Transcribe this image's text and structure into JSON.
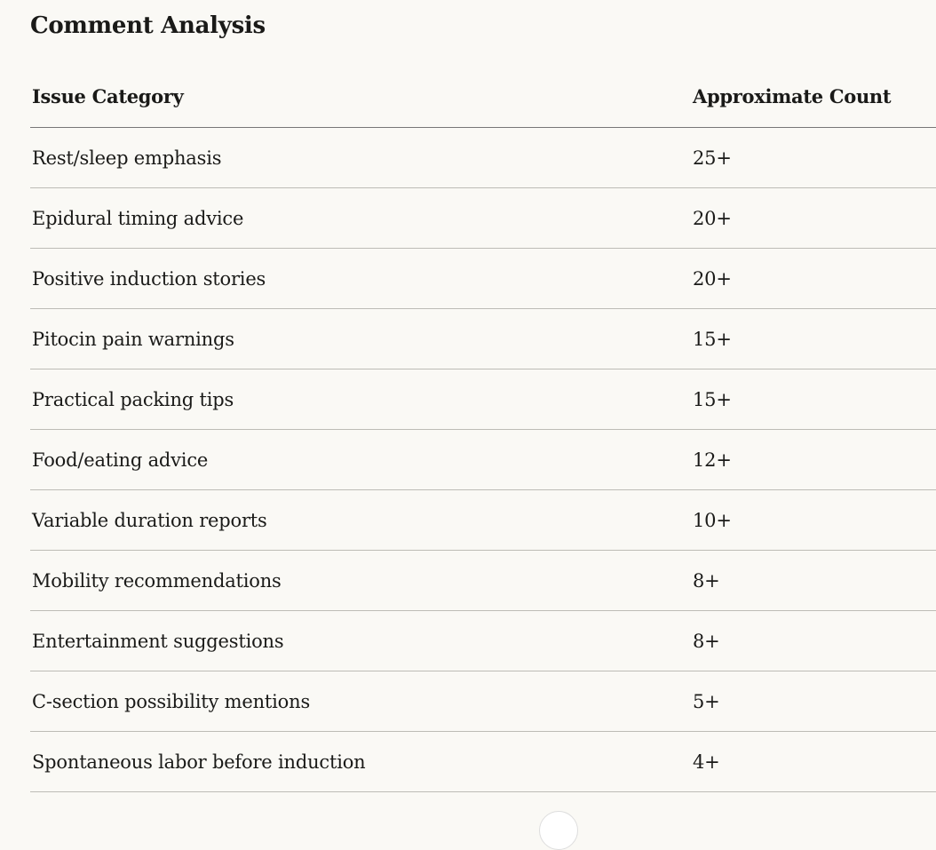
{
  "title": "Comment Analysis",
  "table": {
    "headers": [
      "Issue Category",
      "Approximate Count"
    ],
    "rows": [
      [
        "Rest/sleep emphasis",
        "25+"
      ],
      [
        "Epidural timing advice",
        "20+"
      ],
      [
        "Positive induction stories",
        "20+"
      ],
      [
        "Pitocin pain warnings",
        "15+"
      ],
      [
        "Practical packing tips",
        "15+"
      ],
      [
        "Food/eating advice",
        "12+"
      ],
      [
        "Variable duration reports",
        "10+"
      ],
      [
        "Mobility recommendations",
        "8+"
      ],
      [
        "Entertainment suggestions",
        "8+"
      ],
      [
        "C-section possibility mentions",
        "5+"
      ],
      [
        "Spontaneous labor before induction",
        "4+"
      ]
    ]
  },
  "scroll_button": {
    "icon": "scroll-down-icon"
  }
}
